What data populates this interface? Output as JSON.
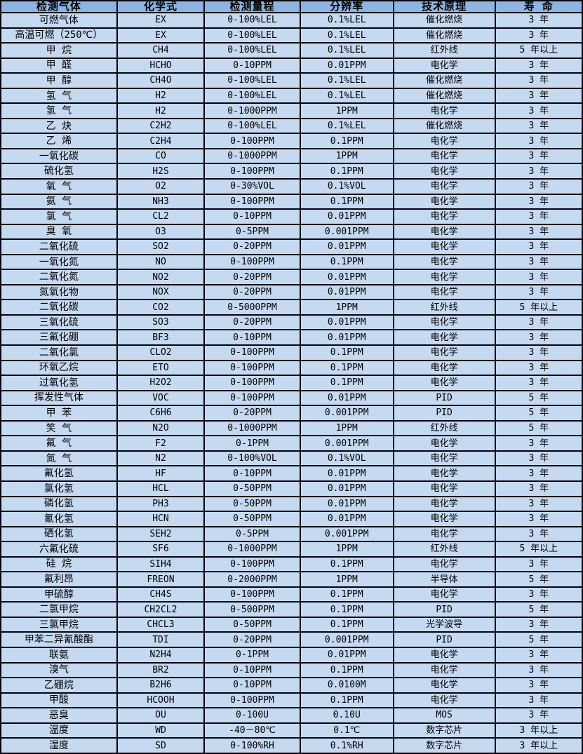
{
  "colors": {
    "header_bg": "#8DB4E2",
    "row_bg": "#C5D9F1",
    "border": "#05050F",
    "text": "#000000"
  },
  "table": {
    "headers": [
      "检测气体",
      "化学式",
      "检测量程",
      "分辨率",
      "技术原理",
      "寿 命"
    ],
    "rows": [
      [
        "可燃气体",
        "EX",
        "0-100%LEL",
        "0.1%LEL",
        "催化燃烧",
        "3 年"
      ],
      [
        "高温可燃（250℃）",
        "EX",
        "0-100%LEL",
        "0.1%LEL",
        "催化燃烧",
        "3 年"
      ],
      [
        "甲 烷",
        "CH4",
        "0-100%LEL",
        "0.1%LEL",
        "红外线",
        "5 年以上"
      ],
      [
        "甲 醛",
        "HCHO",
        "0-10PPM",
        "0.01PPM",
        "电化学",
        "3 年"
      ],
      [
        "甲 醇",
        "CH4O",
        "0-100%LEL",
        "0.1%LEL",
        "催化燃烧",
        "3 年"
      ],
      [
        "氢 气",
        "H2",
        "0-100%LEL",
        "0.1%LEL",
        "催化燃烧",
        "3 年"
      ],
      [
        "氢 气",
        "H2",
        "0-1000PPM",
        "1PPM",
        "电化学",
        "3 年"
      ],
      [
        "乙 炔",
        "C2H2",
        "0-100%LEL",
        "0.1%LEL",
        "催化燃烧",
        "3 年"
      ],
      [
        "乙 烯",
        "C2H4",
        "0-100PPM",
        "0.1PPM",
        "电化学",
        "3 年"
      ],
      [
        "一氧化碳",
        "CO",
        "0-1000PPM",
        "1PPM",
        "电化学",
        "3 年"
      ],
      [
        "硫化氢",
        "H2S",
        "0-100PPM",
        "0.1PPM",
        "电化学",
        "3 年"
      ],
      [
        "氧 气",
        "O2",
        "0-30%VOL",
        "0.1%VOL",
        "电化学",
        "3 年"
      ],
      [
        "氨 气",
        "NH3",
        "0-100PPM",
        "0.1PPM",
        "电化学",
        "3 年"
      ],
      [
        "氯 气",
        "CL2",
        "0-10PPM",
        "0.01PPM",
        "电化学",
        "3 年"
      ],
      [
        "臭 氧",
        "O3",
        "0-5PPM",
        "0.001PPM",
        "电化学",
        "3 年"
      ],
      [
        "二氧化硫",
        "SO2",
        "0-20PPM",
        "0.01PPM",
        "电化学",
        "3 年"
      ],
      [
        "一氧化氮",
        "NO",
        "0-100PPM",
        "0.1PPM",
        "电化学",
        "3 年"
      ],
      [
        "二氧化氮",
        "NO2",
        "0-20PPM",
        "0.01PPM",
        "电化学",
        "3 年"
      ],
      [
        "氮氧化物",
        "NOX",
        "0-20PPM",
        "0.01PPM",
        "电化学",
        "3 年"
      ],
      [
        "二氧化碳",
        "CO2",
        "0-5000PPM",
        "1PPM",
        "红外线",
        "5 年以上"
      ],
      [
        "三氧化硫",
        "SO3",
        "0-20PPM",
        "0.01PPM",
        "电化学",
        "3 年"
      ],
      [
        "三氟化硼",
        "BF3",
        "0-10PPM",
        "0.01PPM",
        "电化学",
        "3 年"
      ],
      [
        "二氧化氯",
        "CLO2",
        "0-100PPM",
        "0.1PPM",
        "电化学",
        "3 年"
      ],
      [
        "环氧乙烷",
        "ETO",
        "0-100PPM",
        "0.1PPM",
        "电化学",
        "3 年"
      ],
      [
        "过氧化氢",
        "H2O2",
        "0-100PPM",
        "0.1PPM",
        "电化学",
        "3 年"
      ],
      [
        "挥发性气体",
        "VOC",
        "0-100PPM",
        "0.01PPM",
        "PID",
        "5 年"
      ],
      [
        "甲 苯",
        "C6H6",
        "0-20PPM",
        "0.001PPM",
        "PID",
        "5 年"
      ],
      [
        "笑 气",
        "N2O",
        "0-1000PPM",
        "1PPM",
        "红外线",
        "5 年"
      ],
      [
        "氟 气",
        "F2",
        "0-1PPM",
        "0.001PPM",
        "电化学",
        "3 年"
      ],
      [
        "氮 气",
        "N2",
        "0-100%VOL",
        "0.1%VOL",
        "电化学",
        "3 年"
      ],
      [
        "氟化氢",
        "HF",
        "0-10PPM",
        "0.01PPM",
        "电化学",
        "3 年"
      ],
      [
        "氯化氢",
        "HCL",
        "0-50PPM",
        "0.01PPM",
        "电化学",
        "3 年"
      ],
      [
        "磷化氢",
        "PH3",
        "0-50PPM",
        "0.01PPM",
        "电化学",
        "3 年"
      ],
      [
        "氰化氢",
        "HCN",
        "0-50PPM",
        "0.01PPM",
        "电化学",
        "3 年"
      ],
      [
        "硒化氢",
        "SEH2",
        "0-5PPM",
        "0.001PPM",
        "电化学",
        "3 年"
      ],
      [
        "六氟化硫",
        "SF6",
        "0-1000PPM",
        "1PPM",
        "红外线",
        "5 年以上"
      ],
      [
        "硅 烷",
        "SIH4",
        "0-100PPM",
        "0.1PPM",
        "电化学",
        "3 年"
      ],
      [
        "氟利昂",
        "FREON",
        "0-2000PPM",
        "1PPM",
        "半导体",
        "5 年"
      ],
      [
        "甲硫醇",
        "CH4S",
        "0-100PPM",
        "0.1PPM",
        "电化学",
        "3 年"
      ],
      [
        "二氯甲烷",
        "CH2CL2",
        "0-500PPM",
        "0.1PPM",
        "PID",
        "5 年"
      ],
      [
        "三氯甲烷",
        "CHCL3",
        "0-50PPM",
        "0.1PPM",
        "光学波导",
        "3 年"
      ],
      [
        "甲苯二异氰酸酯",
        "TDI",
        "0-20PPM",
        "0.001PPM",
        "PID",
        "5 年"
      ],
      [
        "联氨",
        "N2H4",
        "0-1PPM",
        "0.01PPM",
        "电化学",
        "3 年"
      ],
      [
        "溴气",
        "BR2",
        "0-10PPM",
        "0.1PPM",
        "电化学",
        "3 年"
      ],
      [
        "乙硼烷",
        "B2H6",
        "0-10PPM",
        "0.0100M",
        "电化学",
        "3 年"
      ],
      [
        "甲酸",
        "HCOOH",
        "0-100PPM",
        "0.1PPM",
        "电化学",
        "3 年"
      ],
      [
        "恶臭",
        "OU",
        "0-100U",
        "0.10U",
        "MOS",
        "3 年"
      ],
      [
        "温度",
        "WD",
        "-40－80℃",
        "0.1℃",
        "数字芯片",
        "3 年以上"
      ],
      [
        "湿度",
        "SD",
        "0-100%RH",
        "0.1%RH",
        "数字芯片",
        "3 年以上"
      ]
    ]
  }
}
